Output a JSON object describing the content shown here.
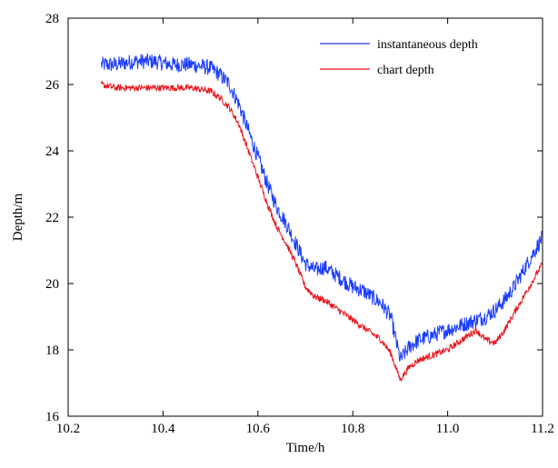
{
  "chart_data": {
    "type": "line",
    "title": "",
    "xlabel": "Time/h",
    "ylabel": "Depth/m",
    "xlim": [
      10.2,
      11.2
    ],
    "ylim": [
      16,
      28
    ],
    "xticks": [
      10.2,
      10.4,
      10.6,
      10.8,
      11.0,
      11.2
    ],
    "xtick_labels": [
      "10.2",
      "10.4",
      "10.6",
      "10.8",
      "11.0",
      "11.2"
    ],
    "yticks": [
      16,
      18,
      20,
      22,
      24,
      26,
      28
    ],
    "ytick_labels": [
      "16",
      "18",
      "20",
      "22",
      "24",
      "26",
      "28"
    ],
    "grid": false,
    "legend_position": "top-right",
    "series": [
      {
        "name": "instantaneous depth",
        "color": "#1a3cff",
        "x": [
          10.27,
          10.3,
          10.34,
          10.38,
          10.42,
          10.46,
          10.5,
          10.52,
          10.54,
          10.56,
          10.58,
          10.6,
          10.62,
          10.64,
          10.66,
          10.68,
          10.7,
          10.72,
          10.74,
          10.76,
          10.78,
          10.8,
          10.82,
          10.84,
          10.86,
          10.88,
          10.9,
          10.92,
          10.94,
          10.96,
          10.98,
          11.0,
          11.02,
          11.04,
          11.06,
          11.08,
          11.1,
          11.12,
          11.14,
          11.16,
          11.18,
          11.2
        ],
        "y": [
          26.6,
          26.6,
          26.7,
          26.7,
          26.6,
          26.6,
          26.5,
          26.3,
          26.0,
          25.4,
          24.6,
          23.8,
          23.0,
          22.3,
          21.8,
          21.2,
          20.6,
          20.4,
          20.5,
          20.3,
          20.1,
          19.9,
          19.8,
          19.6,
          19.4,
          19.0,
          17.7,
          18.1,
          18.3,
          18.4,
          18.5,
          18.6,
          18.7,
          18.8,
          18.9,
          19.0,
          19.2,
          19.5,
          19.9,
          20.4,
          20.9,
          21.4
        ],
        "noise": 0.24
      },
      {
        "name": "chart depth",
        "color": "#e8141c",
        "x": [
          10.27,
          10.3,
          10.34,
          10.38,
          10.42,
          10.46,
          10.5,
          10.52,
          10.54,
          10.56,
          10.58,
          10.6,
          10.62,
          10.64,
          10.66,
          10.68,
          10.7,
          10.72,
          10.74,
          10.76,
          10.78,
          10.8,
          10.82,
          10.84,
          10.86,
          10.88,
          10.9,
          10.92,
          10.94,
          10.96,
          10.98,
          11.0,
          11.02,
          11.04,
          11.06,
          11.08,
          11.1,
          11.12,
          11.14,
          11.16,
          11.18,
          11.2
        ],
        "y": [
          26.0,
          25.9,
          25.9,
          25.9,
          25.9,
          25.9,
          25.8,
          25.6,
          25.3,
          24.8,
          24.0,
          23.2,
          22.4,
          21.7,
          21.2,
          20.6,
          19.9,
          19.6,
          19.5,
          19.3,
          19.1,
          18.9,
          18.7,
          18.5,
          18.3,
          17.9,
          17.1,
          17.5,
          17.7,
          17.8,
          17.9,
          18.0,
          18.2,
          18.4,
          18.6,
          18.3,
          18.2,
          18.6,
          19.1,
          19.6,
          20.1,
          20.6
        ],
        "noise": 0.1
      }
    ]
  }
}
